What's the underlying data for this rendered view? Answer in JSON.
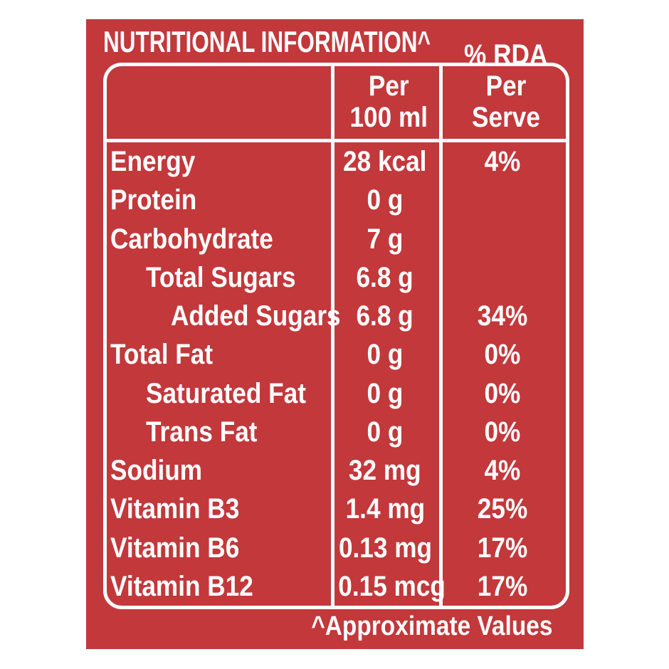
{
  "theme": {
    "panel_red": "#C2383B",
    "text_white": "#FFFFFF"
  },
  "panel": {
    "title": "NUTRITIONAL INFORMATION^",
    "footnote": "^Approximate Values"
  },
  "table": {
    "header": {
      "nutrient_col": "",
      "per_col_line1": "Per",
      "per_col_line2": "100 ml",
      "rda_col_line1": "% RDA",
      "rda_col_line2": "Per Serve"
    },
    "rows": [
      {
        "label": "Energy",
        "indent": 0,
        "per_100ml": "28 kcal",
        "rda_per_serve": "4%"
      },
      {
        "label": "Protein",
        "indent": 0,
        "per_100ml": "0 g",
        "rda_per_serve": ""
      },
      {
        "label": "Carbohydrate",
        "indent": 0,
        "per_100ml": "7 g",
        "rda_per_serve": ""
      },
      {
        "label": "Total Sugars",
        "indent": 1,
        "per_100ml": "6.8 g",
        "rda_per_serve": ""
      },
      {
        "label": "Added Sugars",
        "indent": 2,
        "per_100ml": "6.8 g",
        "rda_per_serve": "34%"
      },
      {
        "label": "Total Fat",
        "indent": 0,
        "per_100ml": "0 g",
        "rda_per_serve": "0%"
      },
      {
        "label": "Saturated Fat",
        "indent": 1,
        "per_100ml": "0 g",
        "rda_per_serve": "0%"
      },
      {
        "label": "Trans Fat",
        "indent": 1,
        "per_100ml": "0 g",
        "rda_per_serve": "0%"
      },
      {
        "label": "Sodium",
        "indent": 0,
        "per_100ml": "32 mg",
        "rda_per_serve": "4%"
      },
      {
        "label": "Vitamin B3",
        "indent": 0,
        "per_100ml": "1.4 mg",
        "rda_per_serve": "25%"
      },
      {
        "label": "Vitamin B6",
        "indent": 0,
        "per_100ml": "0.13 mg",
        "rda_per_serve": "17%"
      },
      {
        "label": "Vitamin B12",
        "indent": 0,
        "per_100ml": "0.15 mcg",
        "rda_per_serve": "17%"
      }
    ]
  }
}
